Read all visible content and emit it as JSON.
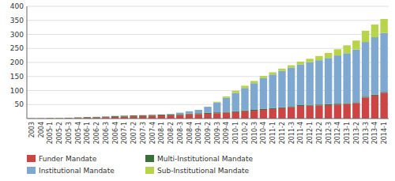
{
  "chart_data": {
    "type": "bar",
    "stacked": true,
    "grid": true,
    "legend": "bottom",
    "categories": [
      "2003",
      "2004",
      "2005-1",
      "2005-2",
      "2005-3",
      "2005-4",
      "2006-1",
      "2006-2",
      "2006-3",
      "2006-4",
      "2007-1",
      "2007-2",
      "2007-3",
      "2007-4",
      "2008-1",
      "2008-2",
      "2008-3",
      "2008-4",
      "2009-1",
      "2009-2",
      "2009-3",
      "2009-4",
      "2010-1",
      "2010-2",
      "2010-3",
      "2010-4",
      "2011-1",
      "2011-2",
      "2011-3",
      "2011-4",
      "2012-1",
      "2012-2",
      "2012-3",
      "2012-4",
      "2013-1",
      "2013-2",
      "2013-3",
      "2013-4",
      "2014-1"
    ],
    "series": [
      {
        "name": "Funder Mandate",
        "color": "#cc4444",
        "values": [
          1,
          1,
          1,
          1,
          2,
          2,
          3,
          4,
          5,
          6,
          7,
          8,
          9,
          10,
          11,
          12,
          13,
          15,
          16,
          17,
          19,
          21,
          23,
          26,
          28,
          31,
          34,
          37,
          41,
          45,
          46,
          47,
          48,
          50,
          52,
          55,
          75,
          82,
          92
        ]
      },
      {
        "name": "Multi-Institutional Mandate",
        "color": "#3a6e3a",
        "values": [
          0,
          0,
          1,
          1,
          1,
          2,
          2,
          2,
          2,
          3,
          3,
          3,
          3,
          3,
          3,
          3,
          3,
          3,
          3,
          3,
          3,
          3,
          3,
          3,
          3,
          3,
          3,
          3,
          3,
          3,
          3,
          3,
          3,
          3,
          3,
          3,
          3,
          3,
          3
        ]
      },
      {
        "name": "Institutional Mandate",
        "color": "#7fa8d0",
        "values": [
          0,
          0,
          0,
          0,
          0,
          0,
          0,
          0,
          0,
          0,
          0,
          0,
          0,
          0,
          0,
          2,
          5,
          8,
          12,
          22,
          35,
          50,
          65,
          80,
          95,
          110,
          120,
          130,
          138,
          145,
          152,
          158,
          165,
          172,
          178,
          188,
          195,
          205,
          210
        ]
      },
      {
        "name": "Sub-Institutional Mandate",
        "color": "#b8d44a",
        "values": [
          0,
          0,
          0,
          0,
          0,
          0,
          0,
          0,
          0,
          0,
          0,
          0,
          0,
          0,
          0,
          0,
          0,
          0,
          0,
          0,
          3,
          5,
          8,
          8,
          8,
          8,
          8,
          8,
          8,
          10,
          12,
          15,
          18,
          22,
          28,
          32,
          40,
          45,
          50
        ]
      }
    ],
    "ylim": [
      0,
      400
    ],
    "yticks": [
      50,
      100,
      150,
      200,
      250,
      300,
      350,
      400
    ]
  }
}
